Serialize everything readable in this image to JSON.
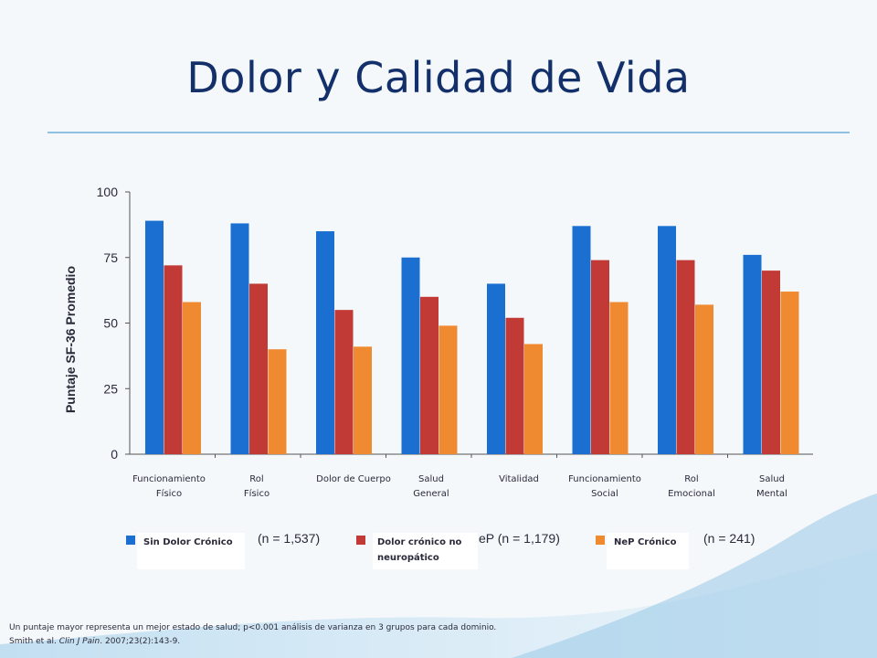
{
  "slide": {
    "title": "Dolor y Calidad de Vida"
  },
  "chart_data": {
    "type": "bar",
    "ylabel": "Puntaje SF-36 Promedio",
    "ylim": [
      0,
      100
    ],
    "yticks": [
      "0",
      "25",
      "50",
      "75",
      "100"
    ],
    "categories": [
      "Funcionamiento\nFísico",
      "Rol\nFísico",
      "Dolor de Cuerpo",
      "Salud\nGeneral",
      "Vitalidad",
      "Funcionamiento\nSocial",
      "Rol\nEmocional",
      "Salud\nMental"
    ],
    "series": [
      {
        "name": "Sin Dolor Crónico",
        "n_text": "(n = 1,537)",
        "color": "#1a6fd1",
        "values": [
          89,
          88,
          85,
          75,
          65,
          87,
          87,
          76
        ]
      },
      {
        "name": "Dolor crónico no\nneuropático",
        "n_text": "eP (n = 1,179)",
        "color": "#c23a36",
        "values": [
          72,
          65,
          55,
          60,
          52,
          74,
          74,
          70
        ]
      },
      {
        "name": "NeP Crónico",
        "n_text": "(n = 241)",
        "color": "#f08a30",
        "values": [
          58,
          40,
          41,
          49,
          42,
          58,
          57,
          62
        ]
      }
    ],
    "grid": false,
    "legend_position": "bottom"
  },
  "footnote": {
    "line1": "Un puntaje mayor representa un mejor estado de salud; p<0.001 análisis de varianza en 3 grupos para cada dominio.",
    "line2_a": "Smith et al. ",
    "line2_journal": "Clin J Pain",
    "line2_b": ". 2007;23(2):143-9."
  }
}
